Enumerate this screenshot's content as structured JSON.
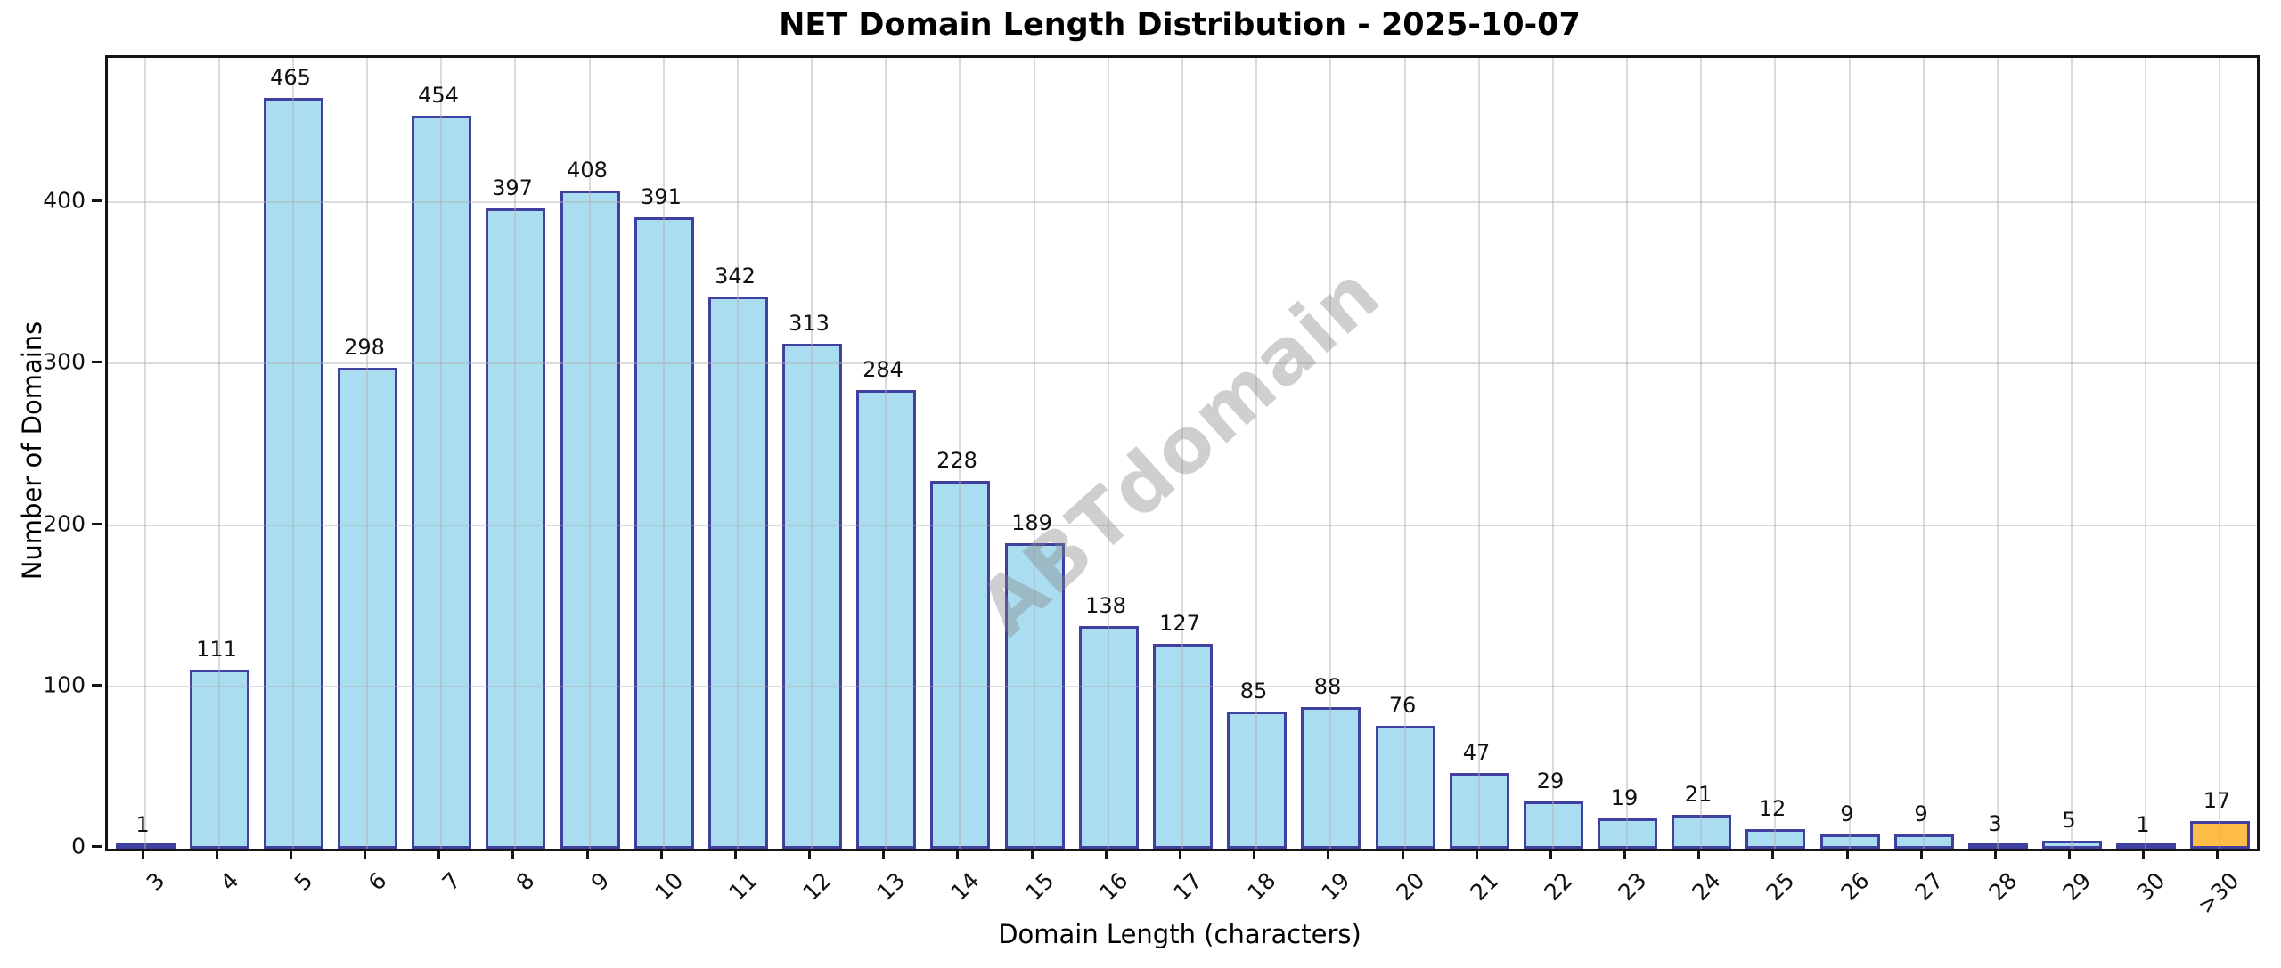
{
  "chart_data": {
    "type": "bar",
    "title": "NET Domain Length Distribution - 2025-10-07",
    "xlabel": "Domain Length (characters)",
    "ylabel": "Number of Domains",
    "categories": [
      "3",
      "4",
      "5",
      "6",
      "7",
      "8",
      "9",
      "10",
      "11",
      "12",
      "13",
      "14",
      "15",
      "16",
      "17",
      "18",
      "19",
      "20",
      "21",
      "22",
      "23",
      "24",
      "25",
      "26",
      "27",
      "28",
      "29",
      "30",
      ">30"
    ],
    "values": [
      1,
      111,
      465,
      298,
      454,
      397,
      408,
      391,
      342,
      313,
      284,
      228,
      189,
      138,
      127,
      85,
      88,
      76,
      47,
      29,
      19,
      21,
      12,
      9,
      9,
      3,
      5,
      1,
      17
    ],
    "yticks": [
      0,
      100,
      200,
      300,
      400
    ],
    "ylim": [
      0,
      490
    ],
    "grid": true,
    "legend": null,
    "watermark": "ABTdomain",
    "colors": {
      "bar_fill": "#ABDDF0",
      "bar_edge": "#4040A0",
      "highlight_fill": "#FDBB47",
      "gridline": "#D9D9D9",
      "axis": "#141414",
      "watermark": "#808080"
    },
    "highlight_index": 28
  }
}
